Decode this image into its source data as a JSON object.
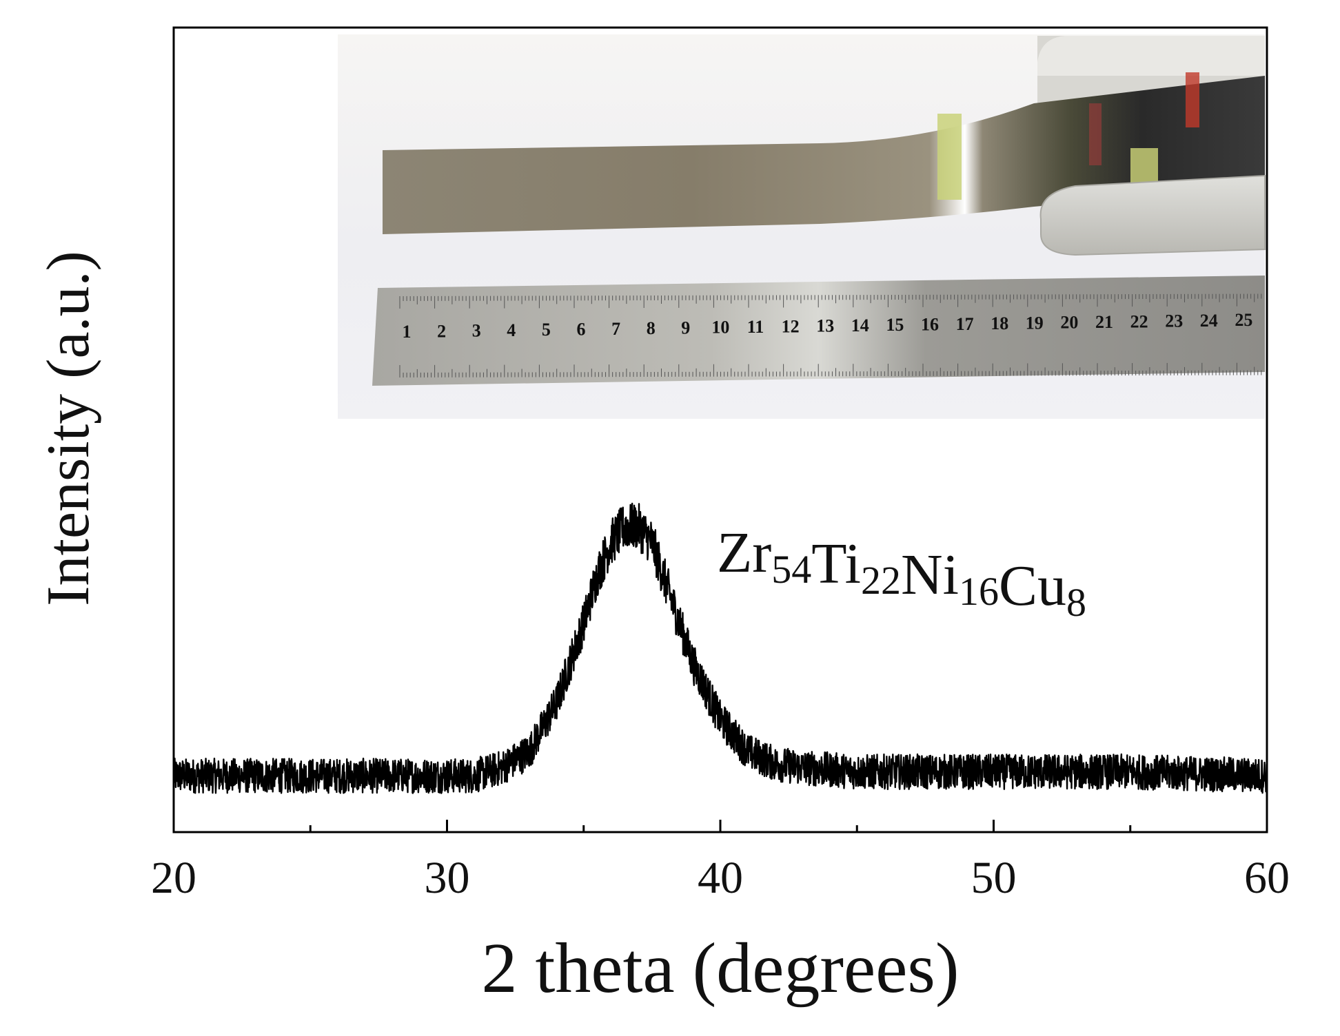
{
  "chart_data": {
    "type": "line",
    "title": "",
    "xlabel": "2 theta (degrees)",
    "ylabel": "Intensity (a.u.)",
    "xlim": [
      20,
      60
    ],
    "ylim": [
      0,
      1
    ],
    "x_ticks": [
      20,
      30,
      40,
      50,
      60
    ],
    "x_minor_ticks": [
      25,
      35,
      45,
      55
    ],
    "y_ticks_shown": false,
    "grid": false,
    "legend": "none",
    "annotation": {
      "parts": [
        {
          "text": "Zr",
          "sub": "54"
        },
        {
          "text": "Ti",
          "sub": "22"
        },
        {
          "text": "Ni",
          "sub": "16"
        },
        {
          "text": "Cu",
          "sub": "8"
        }
      ]
    },
    "inset": {
      "kind": "photo",
      "subject": "amorphous alloy ribbon next to ruler",
      "ruler_numbers": [
        "1",
        "2",
        "3",
        "4",
        "5",
        "6",
        "7",
        "8",
        "9",
        "10",
        "11",
        "12",
        "13",
        "14",
        "15",
        "16",
        "17",
        "18",
        "19",
        "20",
        "21",
        "22",
        "23",
        "24",
        "25"
      ]
    },
    "series": [
      {
        "baseline": 0.07,
        "noise_amplitude": 0.02,
        "x": [
          20,
          24,
          28,
          30,
          31,
          32,
          33,
          34,
          35,
          35.5,
          36,
          36.5,
          37,
          37.5,
          38,
          38.5,
          39,
          40,
          41,
          42,
          43,
          45,
          50,
          55,
          60
        ],
        "y": [
          0.07,
          0.07,
          0.07,
          0.07,
          0.07,
          0.08,
          0.1,
          0.16,
          0.26,
          0.32,
          0.36,
          0.38,
          0.38,
          0.36,
          0.31,
          0.26,
          0.21,
          0.14,
          0.1,
          0.085,
          0.08,
          0.075,
          0.075,
          0.075,
          0.07
        ],
        "color": "#000000"
      }
    ]
  }
}
